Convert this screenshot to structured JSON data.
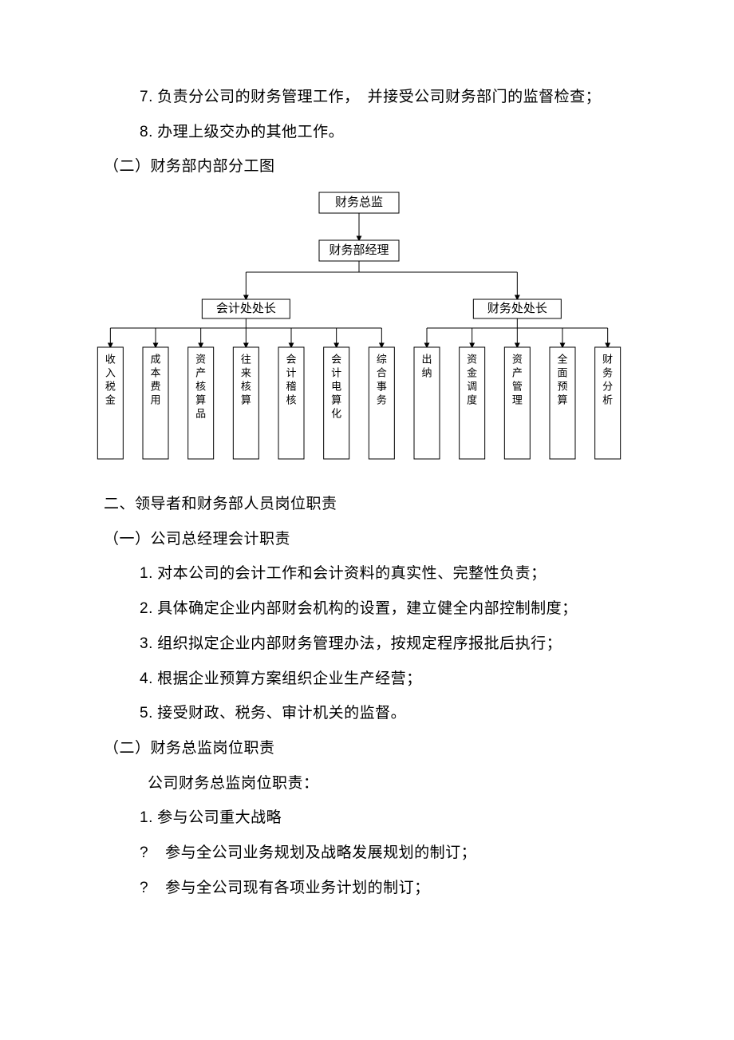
{
  "top_list": {
    "items": [
      {
        "num": "7.",
        "text": "负责分公司的财务管理工作，　并接受公司财务部门的监督检查；"
      },
      {
        "num": "8.",
        "text": "办理上级交办的其他工作。"
      }
    ]
  },
  "sec_a2_title": "（二）财务部内部分工图",
  "orgchart": {
    "box_stroke": "#000000",
    "box_fill": "#ffffff",
    "line_stroke": "#000000",
    "arrow_fill": "#000000",
    "font_size_top": 15,
    "font_size_leaf": 13,
    "top1": "财务总监",
    "top2": "财务部经理",
    "mid_left": "会计处处长",
    "mid_right": "财务处处长",
    "leaves_left": [
      "收入税金",
      "成本费用",
      "资产核算品",
      "往来核算",
      "会计稽核",
      "会计电算化",
      "综合事务"
    ],
    "leaves_right": [
      "出纳",
      "资金调度",
      "资产管理",
      "全面预算",
      "财务分析"
    ],
    "leaf_w": 32,
    "leaf_h": 140
  },
  "sec_b_title": "二、领导者和财务部人员岗位职责",
  "sec_b1_title": "（一）公司总经理会计职责",
  "sec_b1_items": [
    {
      "num": "1.",
      "text": "对本公司的会计工作和会计资料的真实性、完整性负责；"
    },
    {
      "num": "2.",
      "text": "具体确定企业内部财会机构的设置，建立健全内部控制制度；"
    },
    {
      "num": "3.",
      "text": "组织拟定企业内部财务管理办法，按规定程序报批后执行；"
    },
    {
      "num": "4.",
      "text": "根据企业预算方案组织企业生产经营；"
    },
    {
      "num": "5.",
      "text": "接受财政、税务、审计机关的监督。"
    }
  ],
  "sec_b2_title": "（二）财务总监岗位职责",
  "sec_b2_intro": "公司财务总监岗位职责：",
  "sec_b2_item1": {
    "num": "1.",
    "text": "参与公司重大战略"
  },
  "sec_b2_bullets": [
    {
      "mark": "?",
      "text": "参与全公司业务规划及战略发展规划的制订；"
    },
    {
      "mark": "?",
      "text": "参与全公司现有各项业务计划的制订；"
    }
  ]
}
